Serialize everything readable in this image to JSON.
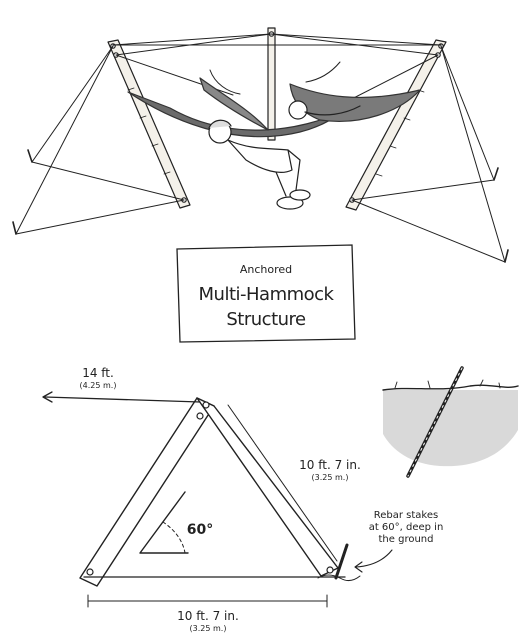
{
  "title_card": {
    "line1": "Anchored",
    "line2": "Multi-Hammock",
    "line3": "Structure"
  },
  "diagram": {
    "rope_length": {
      "value": "14 ft.",
      "metric": "(4.25 m.)"
    },
    "side_length": {
      "value": "10 ft. 7 in.",
      "metric": "(3.25 m.)"
    },
    "base_length": {
      "value": "10 ft. 7 in.",
      "metric": "(3.25 m.)"
    },
    "angle": "60°",
    "rebar_note": [
      "Rebar stakes",
      "at 60°, deep in",
      "the ground"
    ]
  }
}
